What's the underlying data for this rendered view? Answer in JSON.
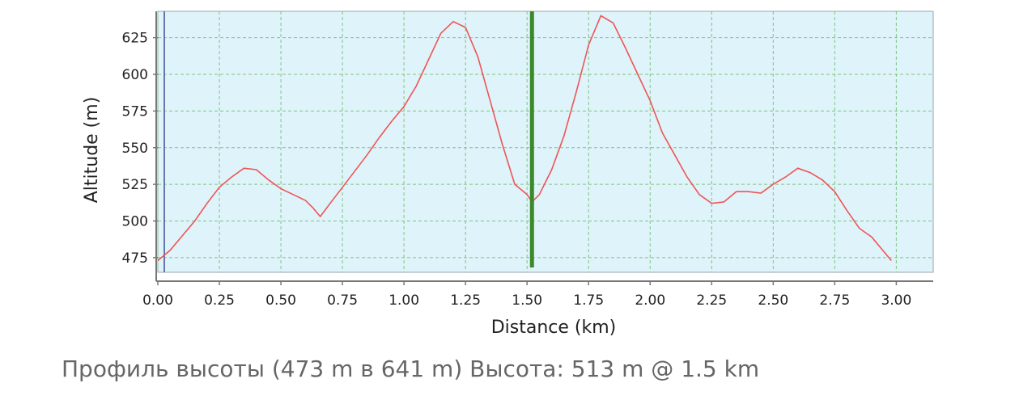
{
  "chart_data": {
    "type": "line",
    "xlabel": "Distance (km)",
    "ylabel": "Altitude (m)",
    "xlim": [
      0,
      3.15
    ],
    "ylim": [
      465,
      643
    ],
    "xticks": [
      "0.00",
      "0.25",
      "0.50",
      "0.75",
      "1.00",
      "1.25",
      "1.50",
      "1.75",
      "2.00",
      "2.25",
      "2.50",
      "2.75",
      "3.00"
    ],
    "yticks": [
      "475",
      "500",
      "525",
      "550",
      "575",
      "600",
      "625"
    ],
    "grid": true,
    "marker_x": 1.52,
    "series": [
      {
        "color": "#ee5555",
        "x": [
          0.0,
          0.05,
          0.1,
          0.15,
          0.2,
          0.25,
          0.3,
          0.35,
          0.4,
          0.45,
          0.5,
          0.55,
          0.6,
          0.63,
          0.66,
          0.7,
          0.75,
          0.8,
          0.85,
          0.9,
          0.95,
          1.0,
          1.05,
          1.1,
          1.15,
          1.2,
          1.25,
          1.3,
          1.35,
          1.4,
          1.45,
          1.5,
          1.52,
          1.55,
          1.6,
          1.65,
          1.7,
          1.75,
          1.8,
          1.85,
          1.9,
          1.95,
          2.0,
          2.05,
          2.1,
          2.15,
          2.2,
          2.25,
          2.3,
          2.35,
          2.4,
          2.45,
          2.5,
          2.55,
          2.6,
          2.65,
          2.7,
          2.75,
          2.8,
          2.85,
          2.9,
          2.95,
          2.98
        ],
        "y": [
          473,
          480,
          490,
          500,
          512,
          523,
          530,
          536,
          535,
          528,
          522,
          518,
          514,
          509,
          503,
          512,
          523,
          534,
          545,
          557,
          568,
          578,
          592,
          610,
          628,
          636,
          632,
          612,
          582,
          552,
          525,
          518,
          513,
          518,
          535,
          558,
          588,
          620,
          640,
          635,
          618,
          600,
          582,
          560,
          545,
          530,
          518,
          512,
          513,
          520,
          520,
          519,
          525,
          530,
          536,
          533,
          528,
          520,
          507,
          495,
          489,
          479,
          473
        ]
      }
    ]
  },
  "caption": {
    "text": "Профиль высоты (473 m в 641 m) Высота: 513 m @ 1.5 km"
  },
  "colors": {
    "plot_bg": "#dff3fb",
    "grid": "#7fc47f",
    "axis": "#777777",
    "line": "#ee5555",
    "marker": "#3a8a2a"
  }
}
